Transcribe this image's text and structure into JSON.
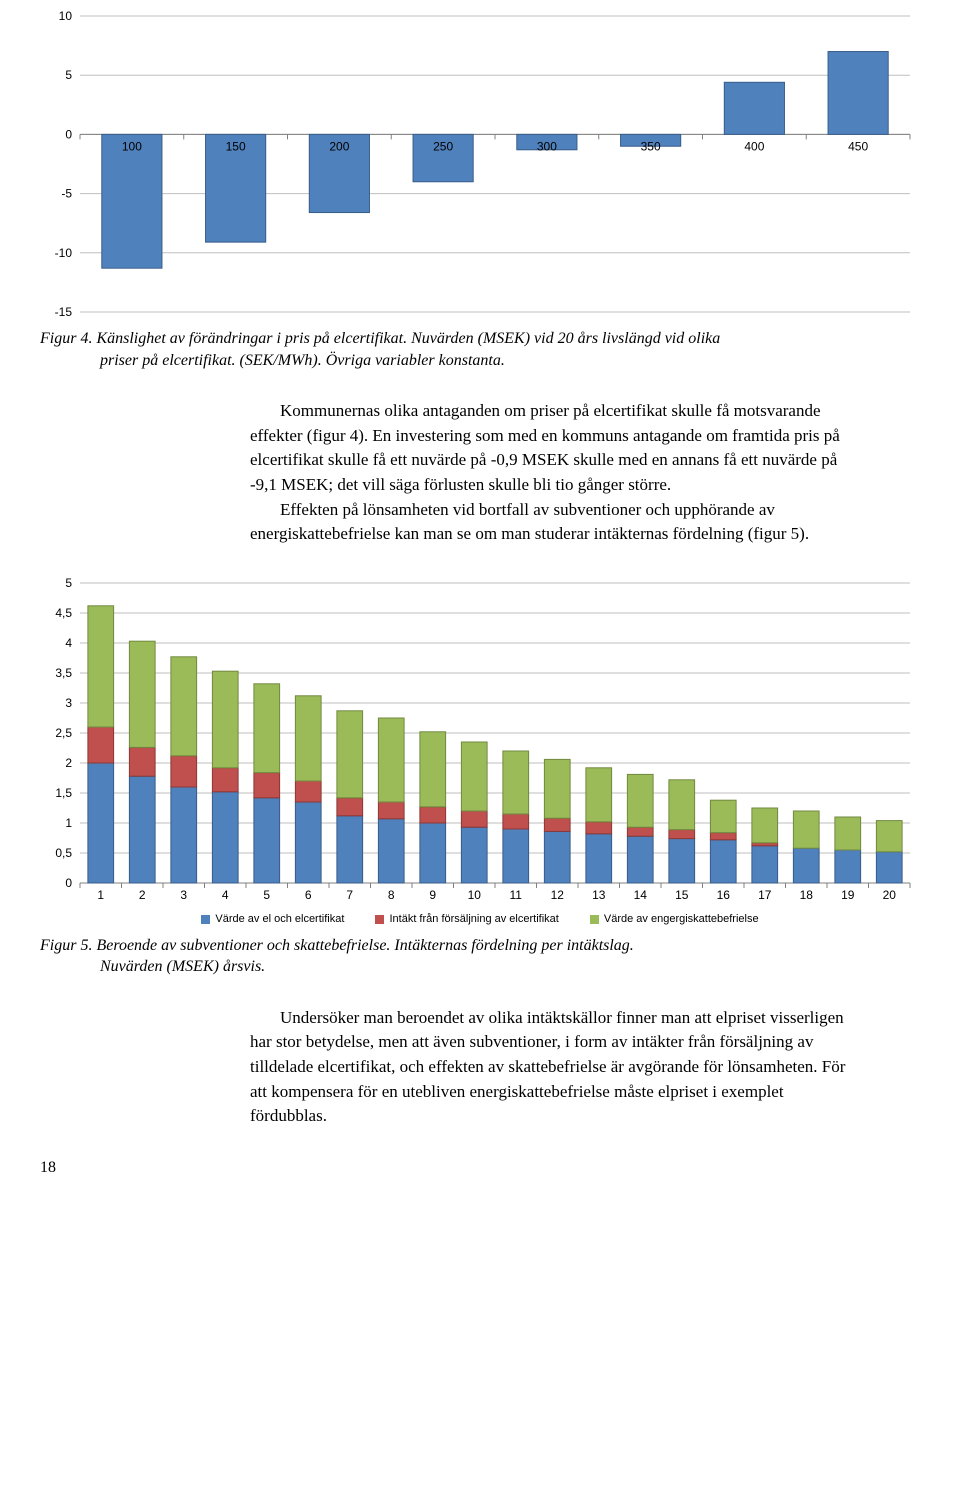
{
  "chart4": {
    "type": "bar",
    "x_labels": [
      "100",
      "150",
      "200",
      "250",
      "300",
      "350",
      "400",
      "450"
    ],
    "values": [
      -11.3,
      -9.1,
      -6.6,
      -4.0,
      -1.3,
      -1.0,
      4.4,
      7.0
    ],
    "ylim_min": -15,
    "ylim_max": 10,
    "ytick_step": 5,
    "yticks": [
      "-15",
      "-10",
      "-5",
      "0",
      "5",
      "10"
    ],
    "bar_color": "#4f81bd",
    "bar_border": "#385d8a",
    "grid_color": "#bfbfbf",
    "background_color": "#ffffff",
    "tick_font_size": 12
  },
  "caption4_line1": "Figur 4. Känslighet av förändringar i pris på elcertifikat. Nuvärden (MSEK) vid 20 års livslängd vid olika",
  "caption4_line2": "priser på elcertifikat. (SEK/MWh). Övriga variabler konstanta.",
  "para1": "Kommunernas olika antaganden om priser på elcertifikat skulle få motsvarande effekter (figur 4). En investering som med en kommuns antagande om framtida pris på elcertifikat skulle få ett nuvärde på -0,9 MSEK skulle med en annans få ett nuvärde på -9,1 MSEK; det vill säga förlusten skulle bli tio gånger större.",
  "para2": "Effekten på lönsamheten vid bortfall av subventioner och upphörande av energiskattebefrielse kan man se om man studerar intäkternas fördelning (figur 5).",
  "chart5": {
    "type": "stacked-bar",
    "x_labels": [
      "1",
      "2",
      "3",
      "4",
      "5",
      "6",
      "7",
      "8",
      "9",
      "10",
      "11",
      "12",
      "13",
      "14",
      "15",
      "16",
      "17",
      "18",
      "19",
      "20"
    ],
    "series": {
      "blue": [
        2.0,
        1.78,
        1.6,
        1.52,
        1.42,
        1.35,
        1.12,
        1.07,
        1.0,
        0.93,
        0.9,
        0.86,
        0.82,
        0.78,
        0.74,
        0.72,
        0.62,
        0.58,
        0.55,
        0.52
      ],
      "red": [
        0.6,
        0.48,
        0.52,
        0.4,
        0.42,
        0.35,
        0.3,
        0.28,
        0.27,
        0.27,
        0.25,
        0.22,
        0.2,
        0.15,
        0.15,
        0.12,
        0.05,
        0.0,
        0.0,
        0.0
      ],
      "green": [
        2.02,
        1.77,
        1.65,
        1.61,
        1.48,
        1.42,
        1.45,
        1.4,
        1.25,
        1.15,
        1.05,
        0.98,
        0.9,
        0.88,
        0.83,
        0.54,
        0.58,
        0.62,
        0.55,
        0.52
      ]
    },
    "ylim_min": 0,
    "ylim_max": 5,
    "ytick_step": 0.5,
    "yticks": [
      "0",
      "0,5",
      "1",
      "1,5",
      "2",
      "2,5",
      "3",
      "3,5",
      "4",
      "4,5",
      "5"
    ],
    "colors": {
      "blue": "#4f81bd",
      "red": "#c0504d",
      "green": "#9bbb59"
    },
    "borders": {
      "blue": "#385d8a",
      "red": "#8c3836",
      "green": "#71893f"
    },
    "grid_color": "#bfbfbf",
    "background_color": "#ffffff",
    "tick_font_size": 12
  },
  "legend5": {
    "blue_label": "Värde av el och elcertifikat",
    "red_label": "Intäkt från försäljning av elcertifikat",
    "green_label": "Värde av engergiskattebefrielse"
  },
  "caption5_line1": "Figur 5. Beroende av subventioner och skattebefrielse. Intäkternas fördelning per intäktslag.",
  "caption5_line2": "Nuvärden (MSEK) årsvis.",
  "para3": "Undersöker man beroendet av olika intäktskällor finner man att elpriset visserligen har stor betydelse, men att även subventioner, i form av intäkter från försäljning av tilldelade elcertifikat, och effekten av skattebefrielse är avgörande för lönsamheten. För att kompensera för en utebliven energiskattebefrielse måste elpriset i exemplet fördubblas.",
  "page_number": "18"
}
